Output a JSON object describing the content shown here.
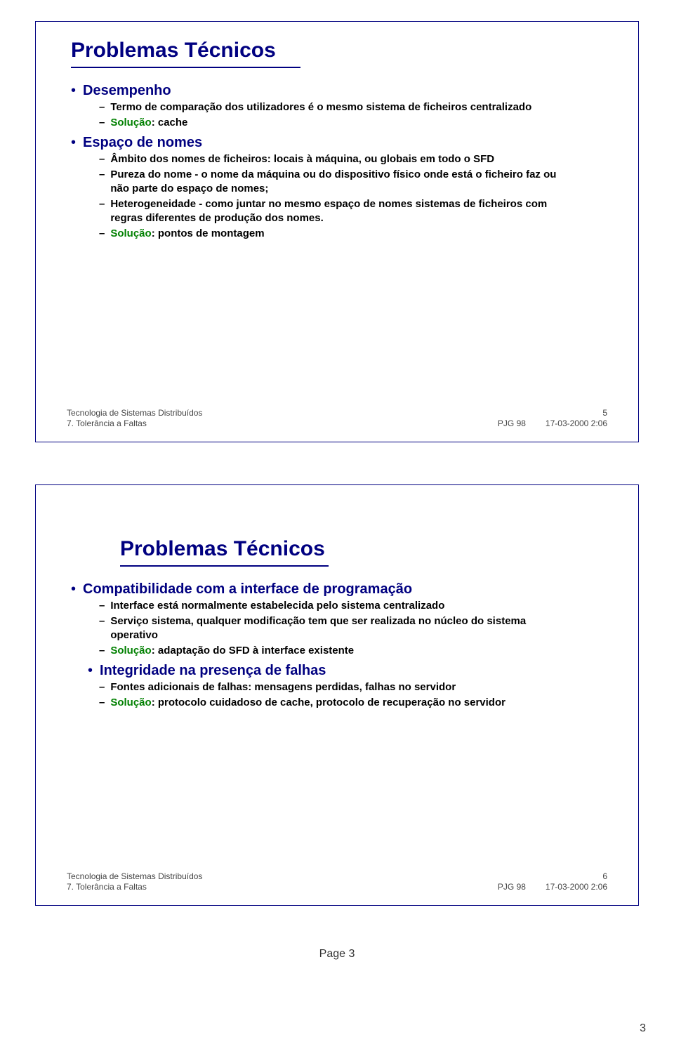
{
  "slides": [
    {
      "title": "Problemas Técnicos",
      "body": [
        {
          "level": 1,
          "text": "Desempenho"
        },
        {
          "level": 2,
          "text": "Termo de comparação dos utilizadores é o mesmo sistema de ficheiros centralizado"
        },
        {
          "level": 2,
          "solution": "Solução",
          "text": ": cache"
        },
        {
          "level": 1,
          "text": "Espaço de nomes"
        },
        {
          "level": 2,
          "text": "Âmbito dos nomes de ficheiros: locais à máquina, ou globais em todo o SFD"
        },
        {
          "level": 2,
          "text": "Pureza do nome - o nome da máquina ou do dispositivo físico onde está o ficheiro faz ou não parte do espaço de nomes;"
        },
        {
          "level": 2,
          "text": "Heterogeneidade - como juntar no mesmo espaço de nomes sistemas de ficheiros com regras diferentes de produção dos nomes."
        },
        {
          "level": 2,
          "solution": "Solução",
          "text": ": pontos de montagem"
        }
      ],
      "footer": {
        "course": "Tecnologia de Sistemas Distribuídos",
        "chapter": "7. Tolerância a Faltas",
        "code": "PJG 98",
        "date": "17-03-2000 2:06",
        "num": "5"
      }
    },
    {
      "title": "Problemas Técnicos",
      "title_offset": true,
      "body": [
        {
          "level": 1,
          "text": "Compatibilidade com a interface de programação"
        },
        {
          "level": 2,
          "text": "Interface está normalmente estabelecida pelo sistema centralizado"
        },
        {
          "level": 2,
          "text": "Serviço sistema, qualquer modificação tem que ser realizada no núcleo do sistema operativo"
        },
        {
          "level": 2,
          "solution": "Solução",
          "text": ": adaptação do SFD à interface existente"
        },
        {
          "level": 1,
          "inset": true,
          "text": "Integridade na presença de falhas"
        },
        {
          "level": 2,
          "text": "Fontes adicionais de falhas: mensagens perdidas, falhas no servidor"
        },
        {
          "level": 2,
          "solution": "Solução",
          "text": ": protocolo cuidadoso de cache, protocolo de recuperação no servidor"
        }
      ],
      "footer": {
        "course": "Tecnologia de Sistemas Distribuídos",
        "chapter": "7. Tolerância a Faltas",
        "code": "PJG 98",
        "date": "17-03-2000 2:06",
        "num": "6"
      }
    }
  ],
  "page_label": "Page 3",
  "page_corner": "3"
}
